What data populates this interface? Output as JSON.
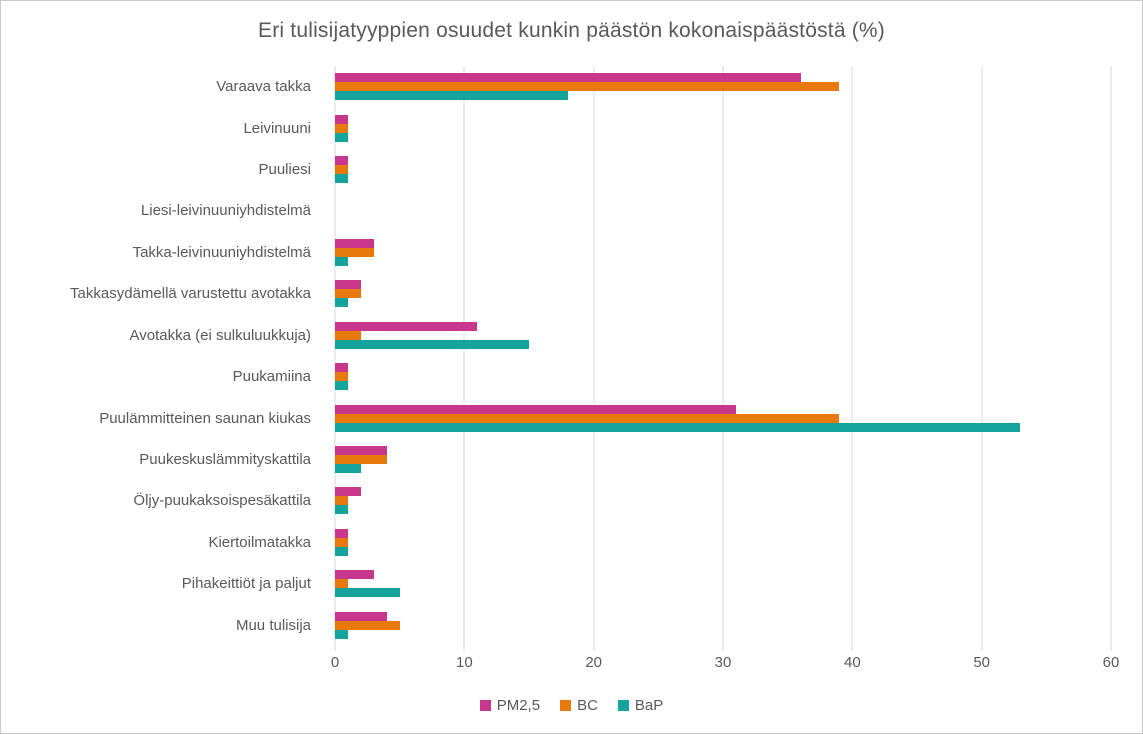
{
  "chart_data": {
    "type": "bar",
    "orientation": "horizontal",
    "title": "Eri tulisijatyyppien osuudet kunkin päästön kokonaispäästöstä (%)",
    "categories": [
      "Varaava takka",
      "Leivinuuni",
      "Puuliesi",
      "Liesi-leivinuuniyhdistelmä",
      "Takka-leivinuuniyhdistelmä",
      "Takkasydämellä varustettu avotakka",
      "Avotakka (ei sulkuluukkuja)",
      "Puukamiina",
      "Puulämmitteinen saunan kiukas",
      "Puukeskuslämmityskattila",
      "Öljy-puukaksoispesäkattila",
      "Kiertoilmatakka",
      "Pihakeittiöt ja paljut",
      "Muu tulisija"
    ],
    "series": [
      {
        "name": "PM2,5",
        "color": "#c9378d",
        "values": [
          36,
          1,
          1,
          0,
          3,
          2,
          11,
          1,
          31,
          4,
          2,
          1,
          3,
          4
        ]
      },
      {
        "name": "BC",
        "color": "#e8790c",
        "values": [
          39,
          1,
          1,
          0,
          3,
          2,
          2,
          1,
          39,
          4,
          1,
          1,
          1,
          5
        ]
      },
      {
        "name": "BaP",
        "color": "#14a49b",
        "values": [
          18,
          1,
          1,
          0,
          1,
          1,
          15,
          1,
          53,
          2,
          1,
          1,
          5,
          1
        ]
      }
    ],
    "xlim": [
      0,
      60
    ],
    "xticks": [
      0,
      10,
      20,
      30,
      40,
      50,
      60
    ],
    "grid": "vertical-only",
    "legend_position": "bottom-center",
    "ylabel": "",
    "xlabel": "",
    "colors": {
      "text": "#595959",
      "gridline": "#d9d9d9",
      "background": "#ffffff"
    }
  }
}
